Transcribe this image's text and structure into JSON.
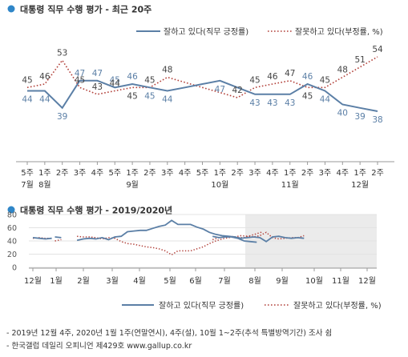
{
  "colors": {
    "approve": "#5b7fa6",
    "disapprove": "#b2413a",
    "bullet": "#2f86c8",
    "shade": "#ebebeb",
    "grid": "#e3e3e3",
    "text": "#333333"
  },
  "chart_data": [
    {
      "type": "line",
      "title": "대통령 직무 수행 평가 - 최근 20주",
      "legend_position": "top-right",
      "x_labels": [
        [
          "5주",
          "7월"
        ],
        [
          "1주",
          "8월"
        ],
        [
          "2주",
          ""
        ],
        [
          "3주",
          ""
        ],
        [
          "4주",
          ""
        ],
        [
          "5주",
          ""
        ],
        [
          "1주",
          "9월"
        ],
        [
          "2주",
          ""
        ],
        [
          "3주",
          ""
        ],
        [
          "4주",
          ""
        ],
        [
          "5주",
          ""
        ],
        [
          "1주",
          "10월"
        ],
        [
          "2주",
          ""
        ],
        [
          "3주",
          ""
        ],
        [
          "4주",
          ""
        ],
        [
          "1주",
          "11월"
        ],
        [
          "2주",
          ""
        ],
        [
          "3주",
          ""
        ],
        [
          "4주",
          ""
        ],
        [
          "1주",
          "12월"
        ],
        [
          "2주",
          ""
        ]
      ],
      "series": [
        {
          "name": "잘하고 있다(직무 긍정률)",
          "style": "solid",
          "values": [
            44,
            44,
            39,
            47,
            47,
            45,
            46,
            45,
            44,
            null,
            null,
            47,
            null,
            43,
            43,
            43,
            46,
            44,
            40,
            39,
            38
          ],
          "labels": [
            "44",
            "44",
            "39",
            "47",
            "47",
            "45",
            "46",
            "45",
            "44",
            "",
            "",
            "47",
            "",
            "43",
            "43",
            "43",
            "46",
            "44",
            "40",
            "39",
            "38"
          ]
        },
        {
          "name": "잘못하고 있다(부정률, %)",
          "style": "dotted",
          "values": [
            45,
            46,
            53,
            45,
            43,
            44,
            45,
            45,
            48,
            null,
            null,
            null,
            42,
            45,
            46,
            47,
            45,
            45,
            48,
            51,
            54
          ],
          "labels": [
            "45",
            "46",
            "53",
            "45",
            "43",
            "44",
            "45",
            "45",
            "48",
            "",
            "",
            "",
            "42",
            "45",
            "46",
            "47",
            "45",
            "45",
            "48",
            "51",
            "54"
          ]
        }
      ]
    },
    {
      "type": "line",
      "title": "대통령 직무 수행 평가 - 2019/2020년",
      "legend_position": "bottom",
      "y_ticks": [
        "80",
        "60",
        "40",
        "20",
        "0"
      ],
      "ylim": [
        0,
        80
      ],
      "x_months": [
        "12월",
        "1월",
        "2월",
        "3월",
        "4월",
        "5월",
        "6월",
        "7월",
        "8월",
        "9월",
        "10월",
        "11월",
        "12월"
      ],
      "shaded_months": [
        "8월",
        "9월",
        "10월",
        "11월",
        "12월"
      ],
      "series": [
        {
          "name": "잘하고 있다(직무 긍정률)",
          "style": "solid",
          "segments": [
            [
              45,
              44,
              43,
              44
            ],
            [
              46,
              45
            ],
            [
              41,
              43,
              44,
              43,
              45,
              42,
              46,
              47,
              54,
              55,
              56,
              56,
              59,
              62,
              64,
              71,
              65,
              65,
              65,
              61,
              58,
              53,
              50,
              48,
              47,
              46,
              44,
              45,
              46,
              45,
              39,
              46,
              47,
              45,
              44,
              45,
              44
            ],
            [
              47,
              45,
              46,
              46,
              44,
              40,
              39,
              38
            ]
          ],
          "segment_starts": [
            0,
            3.5,
            7,
            28.5
          ]
        },
        {
          "name": "잘못하고 있다(부정률, %)",
          "style": "dotted",
          "segments": [
            [
              44,
              45,
              44,
              44
            ],
            [
              40,
              42
            ],
            [
              47,
              46,
              46,
              45,
              43,
              45,
              44,
              39,
              36,
              35,
              33,
              31,
              30,
              28,
              25,
              19,
              25,
              25,
              25,
              28,
              31,
              36,
              40,
              43,
              45,
              46,
              48,
              47,
              46,
              48,
              53,
              45,
              43,
              44,
              45,
              45,
              48
            ],
            [
              42,
              45,
              46,
              47,
              45,
              45,
              48,
              51,
              54
            ]
          ],
          "segment_starts": [
            0,
            3.5,
            7,
            28.5
          ]
        }
      ]
    }
  ],
  "footnotes": [
    "- 2019년 12월 4주, 2020년 1월 1주(연말연시), 4주(설), 10월 1~2주(추석 특별방역기간) 조사 쉼",
    "- 한국갤럽 데일리 오피니언 제429호 www.gallup.co.kr"
  ]
}
